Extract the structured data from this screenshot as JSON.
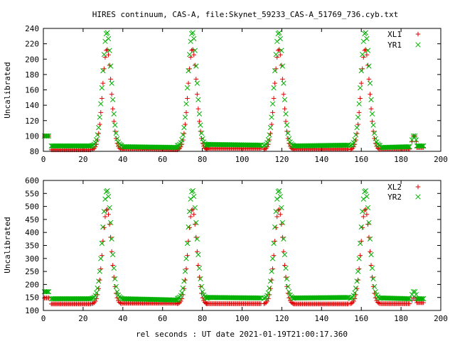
{
  "figure": {
    "title": "HIRES continuum, CAS-A, file:Skynet_59233_CAS-A_51769_736.cyb.txt",
    "xlabel": "rel seconds : UT date 2021-01-19T21:00:17.360"
  },
  "colors": {
    "red": "#e00000",
    "green": "#00b000",
    "axis": "#000000"
  },
  "chart_data": [
    {
      "type": "scatter",
      "xlabel": "",
      "ylabel": "Uncalibrated",
      "xlim": [
        0,
        200
      ],
      "ylim": [
        80,
        240
      ],
      "xticks": [
        0,
        20,
        40,
        60,
        80,
        100,
        120,
        140,
        160,
        180,
        200
      ],
      "yticks": [
        80,
        100,
        120,
        140,
        160,
        180,
        200,
        220,
        240
      ],
      "legend_position": "top-right",
      "peaks_x": [
        32,
        75,
        118.5,
        162
      ],
      "series": [
        {
          "name": "XL1",
          "marker": "+",
          "color": "#e00000",
          "initial_level": 100,
          "baseline": 82,
          "peak": 213,
          "end_level": 85,
          "segments": [
            [
              100,
              100
            ],
            [
              82,
              82
            ],
            [
              83,
              82
            ],
            [
              84,
              84
            ],
            [
              83,
              83
            ],
            [
              83,
              83
            ],
            [
              85,
              85
            ]
          ]
        },
        {
          "name": "YR1",
          "marker": "x",
          "color": "#00b000",
          "initial_level": 100,
          "baseline": 87,
          "peak": 235,
          "end_level": 87,
          "segments": [
            [
              100,
              100
            ],
            [
              87,
              87
            ],
            [
              86,
              85
            ],
            [
              89,
              88
            ],
            [
              87,
              88
            ],
            [
              85,
              86
            ],
            [
              87,
              87
            ]
          ]
        }
      ]
    },
    {
      "type": "scatter",
      "xlabel": "",
      "ylabel": "Uncalibrated",
      "xlim": [
        0,
        200
      ],
      "ylim": [
        100,
        600
      ],
      "xticks": [
        0,
        20,
        40,
        60,
        80,
        100,
        120,
        140,
        160,
        180,
        200
      ],
      "yticks": [
        100,
        150,
        200,
        250,
        300,
        350,
        400,
        450,
        500,
        550,
        600
      ],
      "legend_position": "top-right",
      "peaks_x": [
        32,
        75,
        118.5,
        162
      ],
      "series": [
        {
          "name": "XL2",
          "marker": "+",
          "color": "#e00000",
          "initial_level": 148,
          "baseline": 125,
          "peak": 490,
          "end_level": 130,
          "segments": [
            [
              148,
              148
            ],
            [
              125,
              125
            ],
            [
              128,
              128
            ],
            [
              126,
              126
            ],
            [
              125,
              125
            ],
            [
              126,
              126
            ],
            [
              130,
              130
            ]
          ]
        },
        {
          "name": "YR2",
          "marker": "x",
          "color": "#00b000",
          "initial_level": 172,
          "baseline": 145,
          "peak": 562,
          "end_level": 145,
          "segments": [
            [
              172,
              172
            ],
            [
              145,
              145
            ],
            [
              145,
              140
            ],
            [
              150,
              148
            ],
            [
              148,
              150
            ],
            [
              148,
              145
            ],
            [
              145,
              145
            ]
          ]
        }
      ]
    }
  ]
}
